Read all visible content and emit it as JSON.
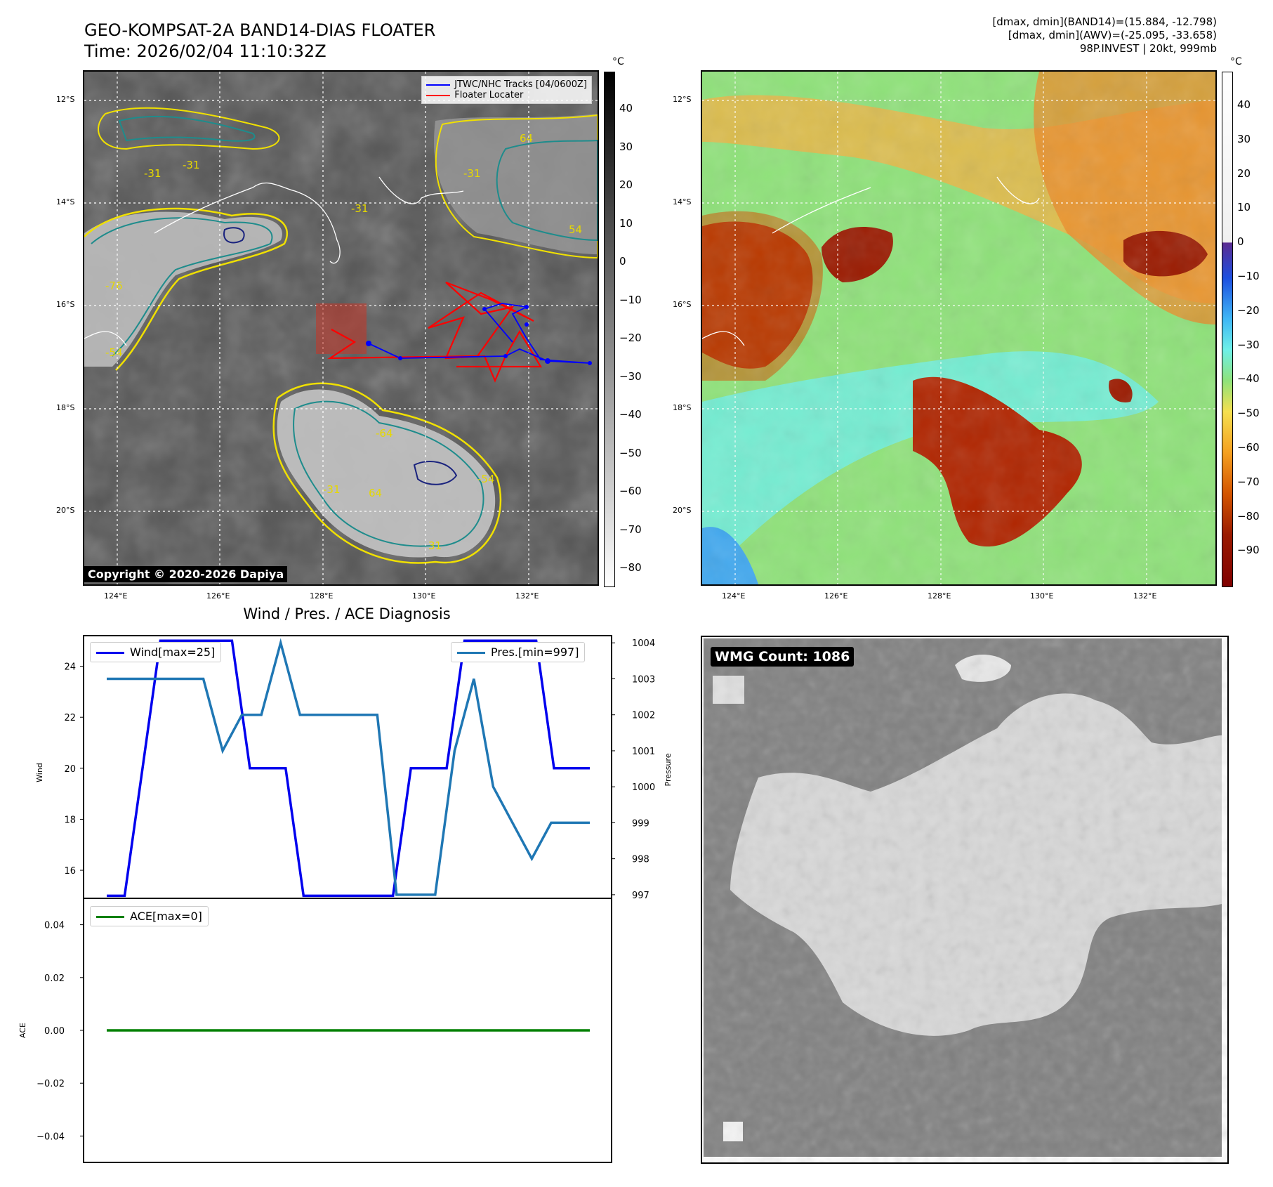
{
  "header": {
    "title_line1": "GEO-KOMPSAT-2A BAND14-DIAS FLOATER",
    "title_line2": "Time: 2026/02/04 11:10:32Z",
    "stats_line1": "[dmax, dmin](BAND14)=(15.884, -12.798)",
    "stats_line2": "[dmax, dmin](AWV)=(-25.095, -33.658)",
    "stats_line3": "98P.INVEST | 20kt, 999mb"
  },
  "map": {
    "lat_ticks": [
      "12°S",
      "14°S",
      "16°S",
      "18°S",
      "20°S"
    ],
    "lon_ticks": [
      "124°E",
      "126°E",
      "128°E",
      "130°E",
      "132°E"
    ],
    "copyright": "Copyright © 2020-2026 Dapiya",
    "legend_track": "JTWC/NHC Tracks [04/0600Z]",
    "legend_floater": "Floater Locater",
    "contour_labels": [
      "-31",
      "-31",
      "-31",
      "-31",
      "-54",
      "-64",
      "64",
      "64",
      "-31",
      "-54",
      "54",
      "-76",
      "31"
    ],
    "track_color": "#0000ff",
    "floater_color": "#ff0000"
  },
  "colorbar1": {
    "unit": "°C",
    "ticks": [
      "40",
      "30",
      "20",
      "10",
      "0",
      "−10",
      "−20",
      "−30",
      "−40",
      "−50",
      "−60",
      "−70",
      "−80"
    ]
  },
  "colorbar2": {
    "unit": "°C",
    "ticks": [
      "40",
      "30",
      "20",
      "10",
      "0",
      "−10",
      "−20",
      "−30",
      "−40",
      "−50",
      "−60",
      "−70",
      "−80",
      "−90"
    ]
  },
  "diag": {
    "title": "Wind / Pres. / ACE Diagnosis",
    "wind_legend": "Wind[max=25]",
    "pres_legend": "Pres.[min=997]",
    "ace_legend": "ACE[max=0]",
    "wind_ylabel": "Wind",
    "pres_ylabel": "Pressure",
    "ace_ylabel": "ACE",
    "wind_ticks": [
      "24",
      "22",
      "20",
      "18",
      "16"
    ],
    "pres_ticks": [
      "1004",
      "1003",
      "1002",
      "1001",
      "1000",
      "999",
      "998",
      "997"
    ],
    "ace_ticks": [
      "0.04",
      "0.02",
      "0.00",
      "−0.02",
      "−0.04"
    ]
  },
  "wmg": {
    "label": "WMG Count: 1086"
  },
  "chart_data": [
    {
      "type": "line",
      "title": "Wind / Pres. / ACE Diagnosis",
      "ylabel": "Wind",
      "ylim": [
        14.9,
        25.2
      ],
      "x": [
        0,
        1,
        2,
        3,
        4,
        5,
        6,
        7,
        8,
        9,
        10,
        11,
        12,
        13,
        14,
        15,
        16,
        17,
        18,
        19,
        20,
        21,
        22,
        23,
        24,
        25,
        26,
        27
      ],
      "series": [
        {
          "name": "Wind[max=25]",
          "color": "#0000ee",
          "values": [
            15,
            15,
            20,
            25,
            25,
            25,
            25,
            25,
            20,
            20,
            20,
            15,
            15,
            15,
            15,
            15,
            15,
            20,
            20,
            20,
            25,
            25,
            25,
            25,
            25,
            20,
            20,
            20
          ]
        }
      ]
    },
    {
      "type": "line",
      "ylabel": "Pressure",
      "ylim": [
        996.9,
        1004.2
      ],
      "x": [
        0,
        1,
        2,
        3,
        4,
        5,
        6,
        7,
        8,
        9,
        10,
        11,
        12,
        13,
        14,
        15,
        16,
        17,
        18,
        19,
        20,
        21,
        22,
        23,
        24,
        25
      ],
      "series": [
        {
          "name": "Pres.[min=997]",
          "color": "#1f77b4",
          "values": [
            1003,
            1003,
            1003,
            1003,
            1003,
            1003,
            1001,
            1002,
            1002,
            1004,
            1002,
            1002,
            1002,
            1002,
            1002,
            997,
            997,
            997,
            1001,
            1003,
            1000,
            999,
            998,
            999,
            999,
            999
          ]
        }
      ]
    },
    {
      "type": "line",
      "ylabel": "ACE",
      "ylim": [
        -0.05,
        0.05
      ],
      "x": [
        0,
        27
      ],
      "series": [
        {
          "name": "ACE[max=0]",
          "color": "#008000",
          "values": [
            0,
            0
          ]
        }
      ]
    }
  ]
}
